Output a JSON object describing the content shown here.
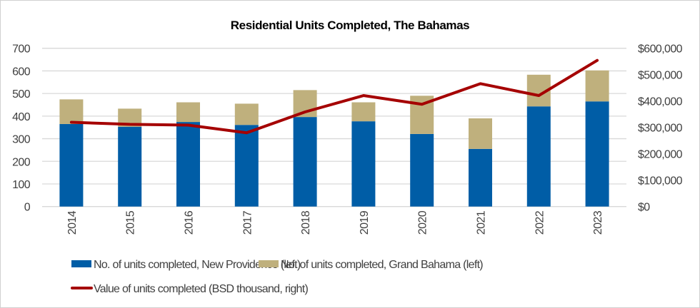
{
  "chart_data": {
    "type": "bar",
    "stacked": true,
    "title": "Residential Units Completed, The Bahamas",
    "categories": [
      "2014",
      "2015",
      "2016",
      "2017",
      "2018",
      "2019",
      "2020",
      "2021",
      "2022",
      "2023"
    ],
    "series": [
      {
        "name": "No. of units completed, New Providence (left)",
        "type": "bar",
        "axis": "left",
        "color": "#005DA6",
        "values": [
          365,
          353,
          374,
          361,
          396,
          377,
          321,
          255,
          443,
          465
        ]
      },
      {
        "name": "No. of units completed, Grand Bahama (left)",
        "type": "bar",
        "axis": "left",
        "color": "#BFB07D",
        "values": [
          109,
          80,
          87,
          94,
          119,
          84,
          169,
          135,
          140,
          137
        ]
      },
      {
        "name": "Value of units completed (BSD thousand, right)",
        "type": "line",
        "axis": "right",
        "color": "#A50000",
        "values": [
          319000,
          311000,
          308000,
          279000,
          358000,
          420000,
          387000,
          465000,
          420000,
          553000
        ]
      }
    ],
    "left_axis": {
      "min": 0,
      "max": 700,
      "ticks": [
        "0",
        "100",
        "200",
        "300",
        "400",
        "500",
        "600",
        "700"
      ]
    },
    "right_axis": {
      "min": 0,
      "max": 600000,
      "ticks": [
        "$0",
        "$100,000",
        "$200,000",
        "$300,000",
        "$400,000",
        "$500,000",
        "$600,000"
      ]
    },
    "grid": true,
    "legend_position": "bottom"
  }
}
